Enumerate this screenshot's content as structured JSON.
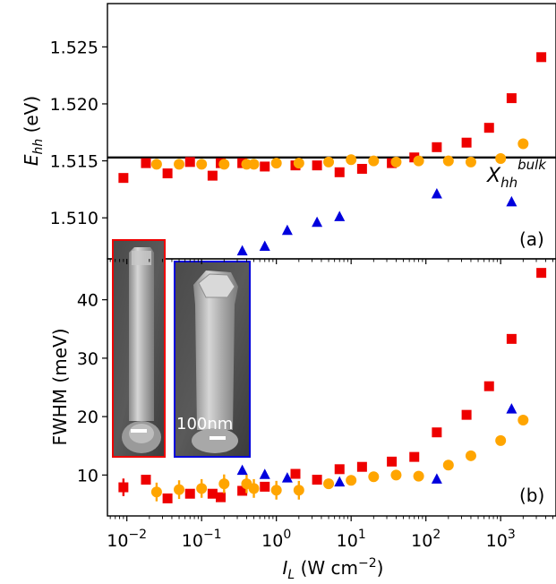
{
  "chart_data": [
    {
      "type": "scatter",
      "panel_label": "(a)",
      "ylabel": "E_hh (eV)",
      "ylabel_main": "E",
      "ylabel_sub": "hh",
      "ylabel_unit": "(eV)",
      "xscale": "log",
      "xlim": [
        0.0055,
        5500
      ],
      "ylim": [
        1.5064,
        1.5288
      ],
      "yticks": [
        1.51,
        1.515,
        1.52,
        1.525
      ],
      "ytick_labels": [
        "1.510",
        "1.515",
        "1.520",
        "1.525"
      ],
      "reference_line": {
        "y": 1.5153,
        "label_main": "X",
        "label_sub": "hh",
        "label_sup": "bulk"
      },
      "series": [
        {
          "color": "#ee0000",
          "marker": "square",
          "x": [
            0.009,
            0.018,
            0.035,
            0.07,
            0.14,
            0.18,
            0.35,
            0.7,
            1.8,
            3.5,
            7,
            14,
            35,
            70,
            140,
            350,
            700,
            1400,
            3500
          ],
          "y": [
            1.5135,
            1.5148,
            1.5139,
            1.5149,
            1.5137,
            1.5148,
            1.5148,
            1.5145,
            1.5146,
            1.5146,
            1.514,
            1.5143,
            1.5148,
            1.5153,
            1.5162,
            1.5166,
            1.5179,
            1.5205,
            1.5241
          ]
        },
        {
          "color": "#ffa500",
          "marker": "circle",
          "x": [
            0.025,
            0.05,
            0.1,
            0.2,
            0.4,
            0.5,
            1,
            2,
            5,
            10,
            20,
            40,
            80,
            200,
            400,
            1000,
            2000
          ],
          "y": [
            1.5147,
            1.5147,
            1.5147,
            1.5147,
            1.5147,
            1.5147,
            1.5148,
            1.5148,
            1.5149,
            1.5151,
            1.515,
            1.5149,
            1.515,
            1.515,
            1.5149,
            1.5152,
            1.5165
          ]
        },
        {
          "color": "#0000dd",
          "marker": "triangle",
          "x": [
            0.35,
            0.7,
            1.4,
            3.5,
            7,
            140,
            1400
          ],
          "y": [
            1.5071,
            1.5075,
            1.5089,
            1.5096,
            1.5101,
            1.5121,
            1.5114
          ]
        }
      ]
    },
    {
      "type": "scatter",
      "panel_label": "(b)",
      "ylabel": "FWHM (meV)",
      "xlabel": "I_L (W cm^-2)",
      "xlabel_main": "I",
      "xlabel_sub": "L",
      "xlabel_unit": " (W cm",
      "xlabel_exp": "−2",
      "xlabel_close": ")",
      "xscale": "log",
      "xlim": [
        0.0055,
        5500
      ],
      "ylim": [
        3,
        47
      ],
      "yticks": [
        10,
        20,
        30,
        40
      ],
      "ytick_labels": [
        "10",
        "20",
        "30",
        "40"
      ],
      "xtick_exponents": [
        "−2",
        "−1",
        "0",
        "1",
        "2",
        "3"
      ],
      "xtick_base": "10",
      "series": [
        {
          "color": "#ee0000",
          "marker": "square",
          "x": [
            0.009,
            0.018,
            0.035,
            0.07,
            0.14,
            0.18,
            0.35,
            0.7,
            1.8,
            3.5,
            7,
            14,
            35,
            70,
            140,
            350,
            700,
            1400,
            3500
          ],
          "y": [
            7.9,
            9.2,
            6.0,
            6.8,
            6.8,
            6.2,
            7.3,
            8.0,
            10.2,
            9.2,
            11.0,
            11.4,
            12.3,
            13.1,
            17.3,
            20.3,
            25.2,
            33.3,
            44.6
          ],
          "err": [
            1.5,
            0,
            0,
            0,
            0,
            0,
            0,
            0,
            0,
            0,
            0,
            0,
            0,
            0,
            0,
            0,
            0,
            0,
            0
          ]
        },
        {
          "color": "#ffa500",
          "marker": "circle",
          "x": [
            0.025,
            0.05,
            0.1,
            0.2,
            0.4,
            0.5,
            1,
            2,
            5,
            10,
            20,
            40,
            80,
            200,
            400,
            1000,
            2000
          ],
          "y": [
            7.1,
            7.5,
            7.7,
            8.5,
            8.5,
            7.7,
            7.4,
            7.4,
            8.5,
            9.1,
            9.7,
            10.0,
            9.8,
            11.7,
            13.3,
            15.9,
            19.4
          ],
          "err": [
            1.6,
            1.6,
            1.6,
            1.6,
            1.6,
            1.6,
            1.6,
            1.6,
            0,
            0,
            0,
            0,
            0,
            0,
            0,
            0,
            0
          ]
        },
        {
          "color": "#0000dd",
          "marker": "triangle",
          "x": [
            0.35,
            0.7,
            1.4,
            7,
            140,
            1400
          ],
          "y": [
            10.8,
            10.1,
            9.5,
            8.8,
            9.3,
            21.3
          ],
          "err": [
            0,
            0,
            0,
            0,
            0,
            0
          ]
        }
      ]
    }
  ],
  "inset": {
    "scale_bar_label": "100nm",
    "left_frame_color": "#ee0000",
    "right_frame_color": "#0000dd"
  }
}
